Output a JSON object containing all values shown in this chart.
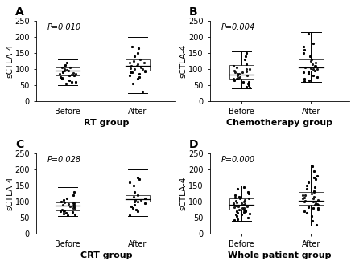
{
  "panels": [
    {
      "label": "A",
      "p_value": "P=0.010",
      "xlabel": "RT group",
      "xtick_labels": [
        "Before",
        "After"
      ],
      "ylim": [
        0,
        250
      ],
      "yticks": [
        0,
        50,
        100,
        150,
        200,
        250
      ],
      "before": {
        "whisker_low": 50,
        "q1": 80,
        "median": 93,
        "q3": 103,
        "whisker_high": 130,
        "points": [
          55,
          58,
          60,
          65,
          70,
          72,
          75,
          78,
          80,
          82,
          83,
          85,
          87,
          88,
          90,
          92,
          93,
          95,
          97,
          100,
          103,
          105,
          108,
          112,
          118
        ]
      },
      "after": {
        "whisker_low": 25,
        "q1": 95,
        "median": 108,
        "q3": 130,
        "whisker_high": 200,
        "points": [
          28,
          55,
          70,
          75,
          80,
          85,
          88,
          90,
          92,
          95,
          98,
          100,
          102,
          105,
          108,
          110,
          115,
          118,
          120,
          125,
          130,
          140,
          150,
          165,
          170
        ]
      }
    },
    {
      "label": "B",
      "p_value": "P=0.004",
      "xlabel": "Chemotherapy group",
      "xtick_labels": [
        "Before",
        "After"
      ],
      "ylim": [
        0,
        250
      ],
      "yticks": [
        0,
        50,
        100,
        150,
        200,
        250
      ],
      "before": {
        "whisker_low": 40,
        "q1": 70,
        "median": 82,
        "q3": 112,
        "whisker_high": 155,
        "points": [
          42,
          45,
          50,
          55,
          58,
          60,
          65,
          68,
          70,
          72,
          75,
          78,
          80,
          83,
          85,
          88,
          90,
          92,
          95,
          98,
          100,
          105,
          108,
          115,
          130,
          140,
          150
        ]
      },
      "after": {
        "whisker_low": 60,
        "q1": 95,
        "median": 105,
        "q3": 130,
        "whisker_high": 215,
        "points": [
          62,
          65,
          70,
          75,
          80,
          85,
          88,
          90,
          92,
          95,
          98,
          100,
          102,
          105,
          108,
          110,
          115,
          120,
          125,
          130,
          140,
          150,
          160,
          170,
          180,
          210
        ]
      }
    },
    {
      "label": "C",
      "p_value": "P=0.028",
      "xlabel": "CRT group",
      "xtick_labels": [
        "Before",
        "After"
      ],
      "ylim": [
        0,
        250
      ],
      "yticks": [
        0,
        50,
        100,
        150,
        200,
        250
      ],
      "before": {
        "whisker_low": 55,
        "q1": 72,
        "median": 87,
        "q3": 97,
        "whisker_high": 145,
        "points": [
          57,
          60,
          62,
          65,
          67,
          68,
          70,
          72,
          75,
          78,
          80,
          83,
          85,
          87,
          88,
          90,
          92,
          93,
          95,
          97,
          100,
          105,
          110,
          120,
          130
        ]
      },
      "after": {
        "whisker_low": 55,
        "q1": 100,
        "median": 106,
        "q3": 120,
        "whisker_high": 200,
        "points": [
          57,
          70,
          75,
          80,
          85,
          90,
          95,
          98,
          100,
          103,
          105,
          108,
          110,
          115,
          120,
          130,
          150,
          160,
          170,
          175
        ]
      }
    },
    {
      "label": "D",
      "p_value": "P=0.000",
      "xlabel": "Whole patient group",
      "xtick_labels": [
        "Before",
        "After"
      ],
      "ylim": [
        0,
        250
      ],
      "yticks": [
        0,
        50,
        100,
        150,
        200,
        250
      ],
      "before": {
        "whisker_low": 40,
        "q1": 75,
        "median": 88,
        "q3": 108,
        "whisker_high": 150,
        "points": [
          42,
          45,
          50,
          55,
          58,
          60,
          62,
          65,
          67,
          68,
          70,
          72,
          74,
          75,
          78,
          80,
          82,
          83,
          85,
          87,
          88,
          90,
          92,
          93,
          95,
          97,
          100,
          102,
          105,
          108,
          110,
          112,
          115,
          120,
          125,
          130,
          138,
          145
        ]
      },
      "after": {
        "whisker_low": 25,
        "q1": 90,
        "median": 102,
        "q3": 128,
        "whisker_high": 215,
        "points": [
          27,
          40,
          55,
          65,
          70,
          75,
          78,
          80,
          82,
          85,
          88,
          90,
          92,
          95,
          98,
          100,
          102,
          105,
          108,
          110,
          112,
          115,
          118,
          120,
          125,
          128,
          132,
          140,
          145,
          150,
          160,
          170,
          175,
          180,
          195,
          210
        ]
      }
    }
  ],
  "ylabel": "sCTLA-4",
  "box_color": "white",
  "box_edgecolor": "black",
  "point_color": "black",
  "median_color": "black",
  "whisker_color": "black",
  "point_size": 5,
  "jitter_strength": 0.12,
  "box_width": 0.35,
  "tick_fontsize": 7,
  "xlabel_fontsize": 8,
  "ylabel_fontsize": 7.5,
  "panel_label_fontsize": 10,
  "pval_fontsize": 7,
  "figure_bg": "white"
}
